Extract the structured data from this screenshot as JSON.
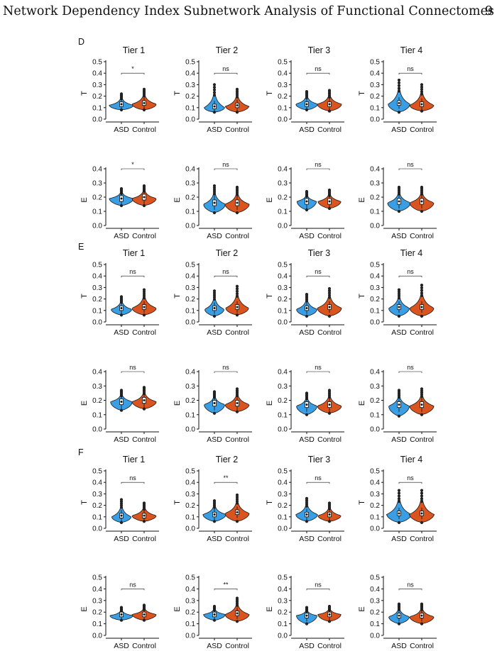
{
  "header": {
    "title": "Network Dependency Index Subnetwork Analysis of Functional Connectomes",
    "page_number": "9"
  },
  "colors": {
    "asd": "#3a9ee4",
    "control": "#d9541e",
    "axis": "#111111",
    "points": "#222222"
  },
  "figure": {
    "x_tick_labels": [
      "ASD",
      "Control"
    ],
    "panels": [
      {
        "label": "D",
        "rows": [
          {
            "ylabel": "T",
            "yticks": [
              "0.0",
              "0.1",
              "0.2",
              "0.3",
              "0.4",
              "0.5"
            ],
            "ymax": 0.5,
            "plots": [
              {
                "title": "Tier 1",
                "sig": "*",
                "asd": {
                  "min": 0.08,
                  "max": 0.22,
                  "med": 0.13,
                  "mode": 0.12,
                  "w": 1.0
                },
                "control": {
                  "min": 0.08,
                  "max": 0.26,
                  "med": 0.14,
                  "mode": 0.13,
                  "w": 1.0
                }
              },
              {
                "title": "Tier 2",
                "sig": "ns",
                "asd": {
                  "min": 0.06,
                  "max": 0.3,
                  "med": 0.11,
                  "mode": 0.1,
                  "w": 0.85
                },
                "control": {
                  "min": 0.06,
                  "max": 0.26,
                  "med": 0.12,
                  "mode": 0.11,
                  "w": 0.95
                }
              },
              {
                "title": "Tier 3",
                "sig": "ns",
                "asd": {
                  "min": 0.08,
                  "max": 0.24,
                  "med": 0.13,
                  "mode": 0.13,
                  "w": 0.9
                },
                "control": {
                  "min": 0.07,
                  "max": 0.25,
                  "med": 0.13,
                  "mode": 0.13,
                  "w": 1.0
                }
              },
              {
                "title": "Tier 4",
                "sig": "ns",
                "asd": {
                  "min": 0.06,
                  "max": 0.34,
                  "med": 0.14,
                  "mode": 0.13,
                  "w": 0.9
                },
                "control": {
                  "min": 0.07,
                  "max": 0.3,
                  "med": 0.13,
                  "mode": 0.12,
                  "w": 1.0
                }
              }
            ]
          },
          {
            "ylabel": "E",
            "yticks": [
              "0.0",
              "0.1",
              "0.2",
              "0.3",
              "0.4"
            ],
            "ymax": 0.4,
            "plots": [
              {
                "title": "",
                "sig": "*",
                "asd": {
                  "min": 0.14,
                  "max": 0.26,
                  "med": 0.19,
                  "mode": 0.19,
                  "w": 1.0
                },
                "control": {
                  "min": 0.14,
                  "max": 0.28,
                  "med": 0.2,
                  "mode": 0.19,
                  "w": 1.0
                }
              },
              {
                "title": "",
                "sig": "ns",
                "asd": {
                  "min": 0.09,
                  "max": 0.28,
                  "med": 0.16,
                  "mode": 0.15,
                  "w": 0.9
                },
                "control": {
                  "min": 0.09,
                  "max": 0.27,
                  "med": 0.16,
                  "mode": 0.15,
                  "w": 1.0
                }
              },
              {
                "title": "",
                "sig": "ns",
                "asd": {
                  "min": 0.11,
                  "max": 0.24,
                  "med": 0.17,
                  "mode": 0.17,
                  "w": 0.8
                },
                "control": {
                  "min": 0.12,
                  "max": 0.25,
                  "med": 0.17,
                  "mode": 0.17,
                  "w": 0.95
                }
              },
              {
                "title": "",
                "sig": "ns",
                "asd": {
                  "min": 0.1,
                  "max": 0.27,
                  "med": 0.17,
                  "mode": 0.16,
                  "w": 0.95
                },
                "control": {
                  "min": 0.1,
                  "max": 0.27,
                  "med": 0.17,
                  "mode": 0.16,
                  "w": 1.0
                }
              }
            ]
          }
        ]
      },
      {
        "label": "E",
        "rows": [
          {
            "ylabel": "T",
            "yticks": [
              "0.0",
              "0.1",
              "0.2",
              "0.3",
              "0.4",
              "0.5"
            ],
            "ymax": 0.5,
            "plots": [
              {
                "title": "Tier 1",
                "sig": "ns",
                "asd": {
                  "min": 0.06,
                  "max": 0.22,
                  "med": 0.12,
                  "mode": 0.11,
                  "w": 0.85
                },
                "control": {
                  "min": 0.06,
                  "max": 0.28,
                  "med": 0.13,
                  "mode": 0.12,
                  "w": 1.0
                }
              },
              {
                "title": "Tier 2",
                "sig": "ns",
                "asd": {
                  "min": 0.05,
                  "max": 0.27,
                  "med": 0.12,
                  "mode": 0.11,
                  "w": 0.8
                },
                "control": {
                  "min": 0.06,
                  "max": 0.31,
                  "med": 0.13,
                  "mode": 0.12,
                  "w": 0.95
                }
              },
              {
                "title": "Tier 3",
                "sig": "ns",
                "asd": {
                  "min": 0.05,
                  "max": 0.24,
                  "med": 0.12,
                  "mode": 0.11,
                  "w": 0.85
                },
                "control": {
                  "min": 0.05,
                  "max": 0.29,
                  "med": 0.13,
                  "mode": 0.12,
                  "w": 1.0
                }
              },
              {
                "title": "Tier 4",
                "sig": "ns",
                "asd": {
                  "min": 0.05,
                  "max": 0.28,
                  "med": 0.13,
                  "mode": 0.12,
                  "w": 0.85
                },
                "control": {
                  "min": 0.05,
                  "max": 0.32,
                  "med": 0.13,
                  "mode": 0.12,
                  "w": 1.0
                }
              }
            ]
          },
          {
            "ylabel": "E",
            "yticks": [
              "0.0",
              "0.1",
              "0.2",
              "0.3",
              "0.4"
            ],
            "ymax": 0.4,
            "plots": [
              {
                "title": "",
                "sig": "ns",
                "asd": {
                  "min": 0.13,
                  "max": 0.27,
                  "med": 0.19,
                  "mode": 0.19,
                  "w": 0.9
                },
                "control": {
                  "min": 0.14,
                  "max": 0.29,
                  "med": 0.2,
                  "mode": 0.19,
                  "w": 1.0
                }
              },
              {
                "title": "",
                "sig": "ns",
                "asd": {
                  "min": 0.11,
                  "max": 0.26,
                  "med": 0.18,
                  "mode": 0.17,
                  "w": 0.85
                },
                "control": {
                  "min": 0.12,
                  "max": 0.28,
                  "med": 0.18,
                  "mode": 0.17,
                  "w": 1.0
                }
              },
              {
                "title": "",
                "sig": "ns",
                "asd": {
                  "min": 0.1,
                  "max": 0.25,
                  "med": 0.17,
                  "mode": 0.16,
                  "w": 0.85
                },
                "control": {
                  "min": 0.11,
                  "max": 0.27,
                  "med": 0.17,
                  "mode": 0.16,
                  "w": 1.0
                }
              },
              {
                "title": "",
                "sig": "ns",
                "asd": {
                  "min": 0.09,
                  "max": 0.27,
                  "med": 0.17,
                  "mode": 0.16,
                  "w": 0.85
                },
                "control": {
                  "min": 0.1,
                  "max": 0.28,
                  "med": 0.17,
                  "mode": 0.16,
                  "w": 1.0
                }
              }
            ]
          }
        ]
      },
      {
        "label": "F",
        "rows": [
          {
            "ylabel": "T",
            "yticks": [
              "0.0",
              "0.1",
              "0.2",
              "0.3",
              "0.4",
              "0.5"
            ],
            "ymax": 0.5,
            "plots": [
              {
                "title": "Tier 1",
                "sig": "ns",
                "asd": {
                  "min": 0.05,
                  "max": 0.25,
                  "med": 0.11,
                  "mode": 0.1,
                  "w": 0.8
                },
                "control": {
                  "min": 0.06,
                  "max": 0.22,
                  "med": 0.11,
                  "mode": 0.11,
                  "w": 1.0
                }
              },
              {
                "title": "Tier 2",
                "sig": "**",
                "asd": {
                  "min": 0.06,
                  "max": 0.24,
                  "med": 0.12,
                  "mode": 0.12,
                  "w": 0.95
                },
                "control": {
                  "min": 0.06,
                  "max": 0.29,
                  "med": 0.14,
                  "mode": 0.13,
                  "w": 1.0
                }
              },
              {
                "title": "Tier 3",
                "sig": "ns",
                "asd": {
                  "min": 0.06,
                  "max": 0.26,
                  "med": 0.12,
                  "mode": 0.12,
                  "w": 0.9
                },
                "control": {
                  "min": 0.06,
                  "max": 0.22,
                  "med": 0.12,
                  "mode": 0.11,
                  "w": 0.95
                }
              },
              {
                "title": "Tier 4",
                "sig": "ns",
                "asd": {
                  "min": 0.05,
                  "max": 0.33,
                  "med": 0.13,
                  "mode": 0.12,
                  "w": 1.0
                },
                "control": {
                  "min": 0.05,
                  "max": 0.33,
                  "med": 0.13,
                  "mode": 0.12,
                  "w": 1.0
                }
              }
            ]
          },
          {
            "ylabel": "E",
            "yticks": [
              "0.0",
              "0.1",
              "0.2",
              "0.3",
              "0.4",
              "0.5"
            ],
            "ymax": 0.5,
            "plots": [
              {
                "title": "",
                "sig": "ns",
                "asd": {
                  "min": 0.13,
                  "max": 0.24,
                  "med": 0.18,
                  "mode": 0.17,
                  "w": 0.95
                },
                "control": {
                  "min": 0.13,
                  "max": 0.26,
                  "med": 0.18,
                  "mode": 0.18,
                  "w": 1.0
                }
              },
              {
                "title": "",
                "sig": "**",
                "asd": {
                  "min": 0.13,
                  "max": 0.25,
                  "med": 0.18,
                  "mode": 0.18,
                  "w": 0.9
                },
                "control": {
                  "min": 0.12,
                  "max": 0.32,
                  "med": 0.19,
                  "mode": 0.18,
                  "w": 1.0
                }
              },
              {
                "title": "",
                "sig": "ns",
                "asd": {
                  "min": 0.1,
                  "max": 0.24,
                  "med": 0.17,
                  "mode": 0.17,
                  "w": 0.85
                },
                "control": {
                  "min": 0.12,
                  "max": 0.25,
                  "med": 0.18,
                  "mode": 0.18,
                  "w": 0.95
                }
              },
              {
                "title": "",
                "sig": "ns",
                "asd": {
                  "min": 0.1,
                  "max": 0.27,
                  "med": 0.17,
                  "mode": 0.16,
                  "w": 0.85
                },
                "control": {
                  "min": 0.1,
                  "max": 0.27,
                  "med": 0.17,
                  "mode": 0.16,
                  "w": 1.0
                }
              }
            ]
          }
        ]
      }
    ]
  }
}
